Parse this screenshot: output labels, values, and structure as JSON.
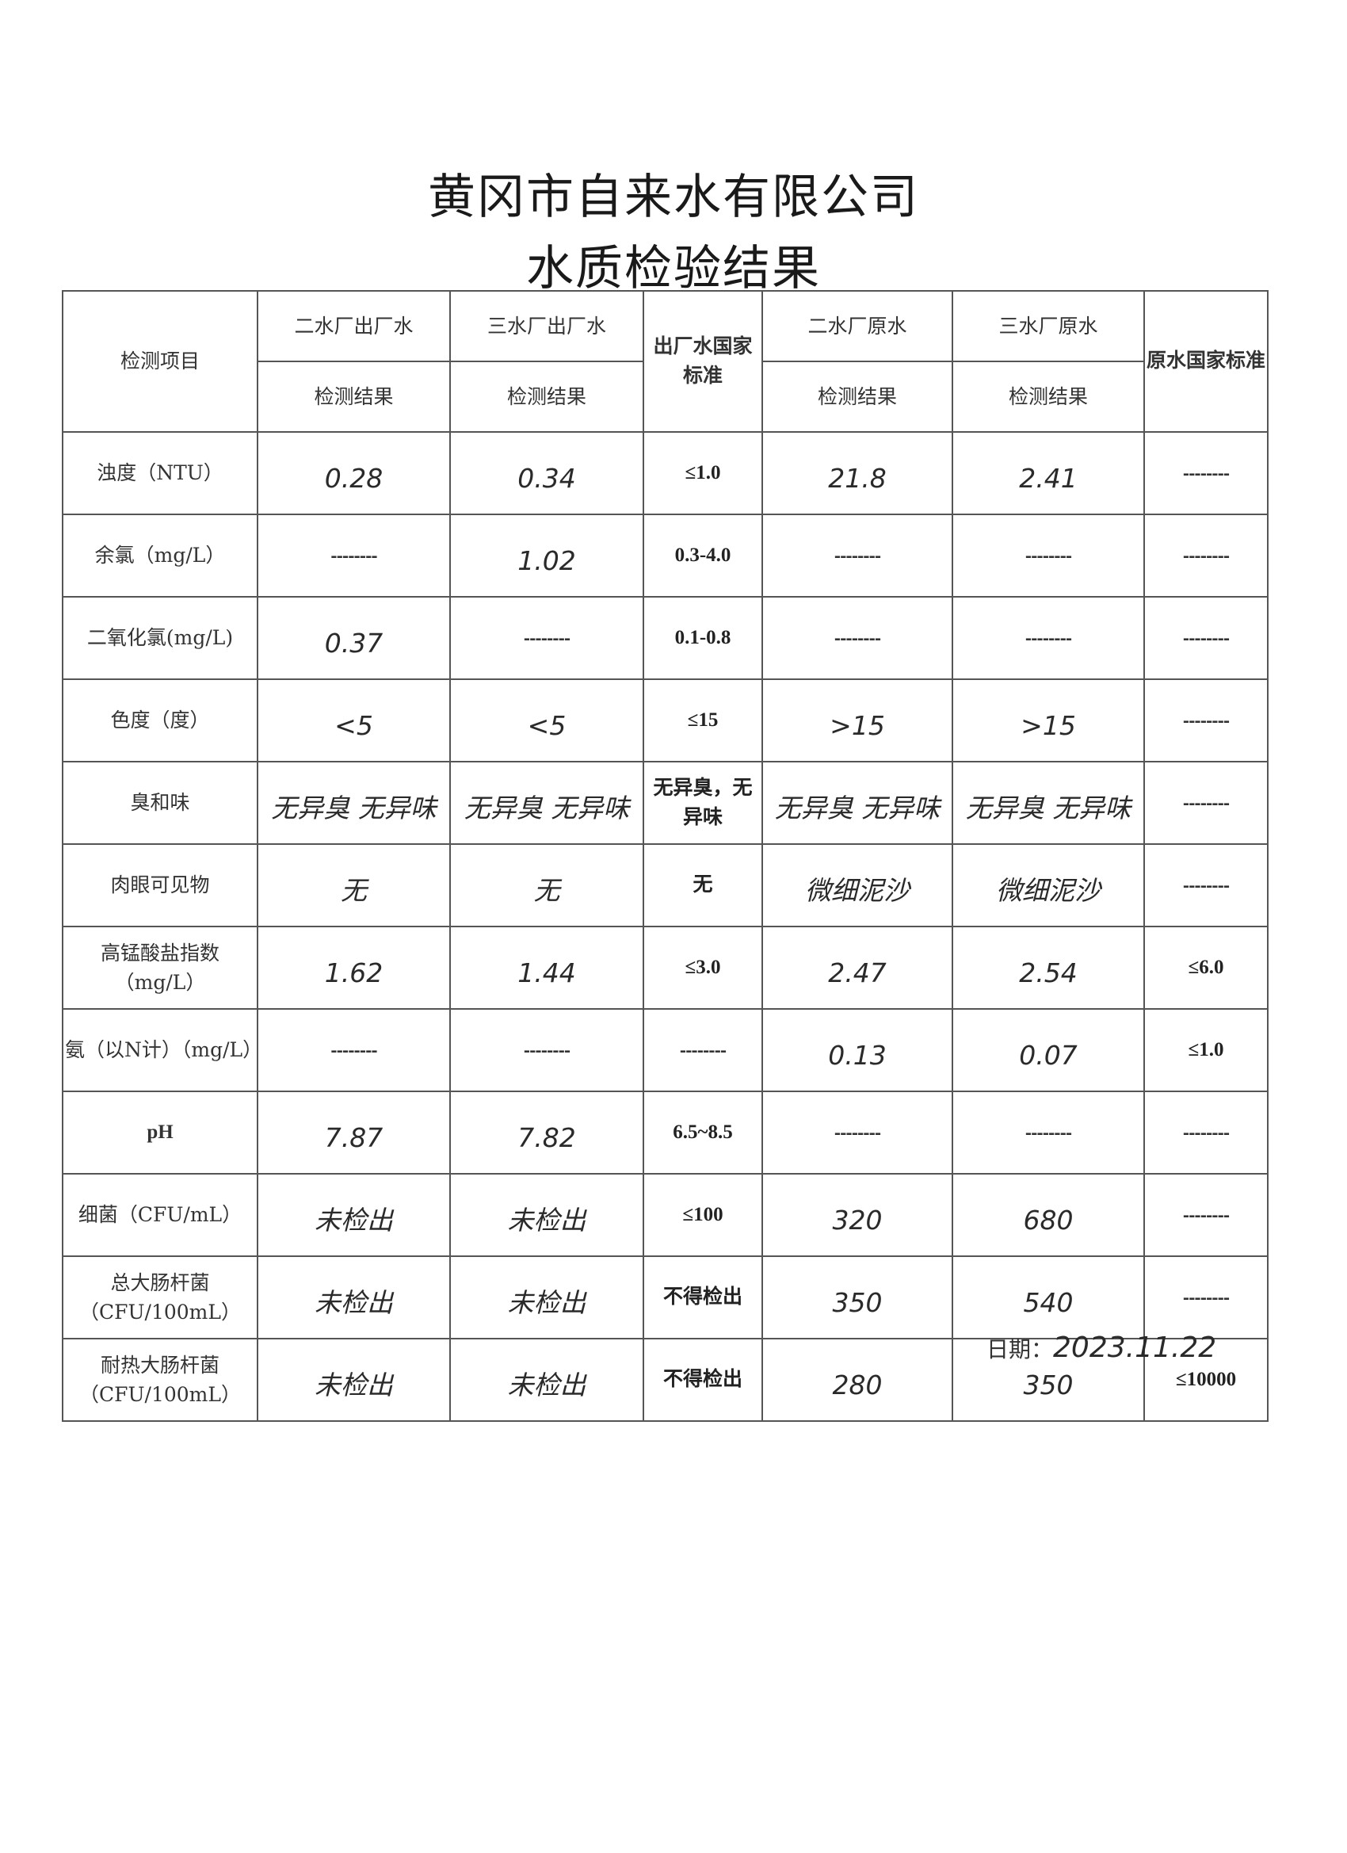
{
  "title": {
    "company": "黄冈市自来水有限公司",
    "subtitle": "水质检验结果"
  },
  "header": {
    "item": "检测项目",
    "plant2_out": "二水厂出厂水",
    "plant3_out": "三水厂出厂水",
    "out_standard": "出厂水国家标准",
    "plant2_raw": "二水厂原水",
    "plant3_raw": "三水厂原水",
    "raw_standard": "原水国家标准",
    "result": "检测结果"
  },
  "rows": [
    {
      "item": "浊度（NTU）",
      "values": [
        "0.28",
        "0.34",
        "≤1.0",
        "21.8",
        "2.41",
        "--------"
      ]
    },
    {
      "item": "余氯（mg/L）",
      "values": [
        "--------",
        "1.02",
        "0.3-4.0",
        "--------",
        "--------",
        "--------"
      ]
    },
    {
      "item": "二氧化氯(mg/L)",
      "values": [
        "0.37",
        "--------",
        "0.1-0.8",
        "--------",
        "--------",
        "--------"
      ]
    },
    {
      "item": "色度（度）",
      "values": [
        "<5",
        "<5",
        "≤15",
        ">15",
        ">15",
        "--------"
      ]
    },
    {
      "item": "臭和味",
      "values": [
        "无异臭 无异味",
        "无异臭 无异味",
        "无异臭，无异味",
        "无异臭 无异味",
        "无异臭 无异味",
        "--------"
      ]
    },
    {
      "item": "肉眼可见物",
      "values": [
        "无",
        "无",
        "无",
        "微细泥沙",
        "微细泥沙",
        "--------"
      ]
    },
    {
      "item": "高锰酸盐指数（mg/L）",
      "values": [
        "1.62",
        "1.44",
        "≤3.0",
        "2.47",
        "2.54",
        "≤6.0"
      ]
    },
    {
      "item": "氨（以N计）（mg/L）",
      "values": [
        "--------",
        "--------",
        "--------",
        "0.13",
        "0.07",
        "≤1.0"
      ]
    },
    {
      "item": "pH",
      "values": [
        "7.87",
        "7.82",
        "6.5~8.5",
        "--------",
        "--------",
        "--------"
      ]
    },
    {
      "item": "细菌（CFU/mL）",
      "values": [
        "未检出",
        "未检出",
        "≤100",
        "320",
        "680",
        "--------"
      ]
    },
    {
      "item": "总大肠杆菌（CFU/100mL）",
      "values": [
        "未检出",
        "未检出",
        "不得检出",
        "350",
        "540",
        "--------"
      ]
    },
    {
      "item": "耐热大肠杆菌（CFU/100mL）",
      "values": [
        "未检出",
        "未检出",
        "不得检出",
        "280",
        "350",
        "≤10000"
      ]
    }
  ],
  "date": {
    "label": "日期：",
    "value": "2023.11.22"
  }
}
